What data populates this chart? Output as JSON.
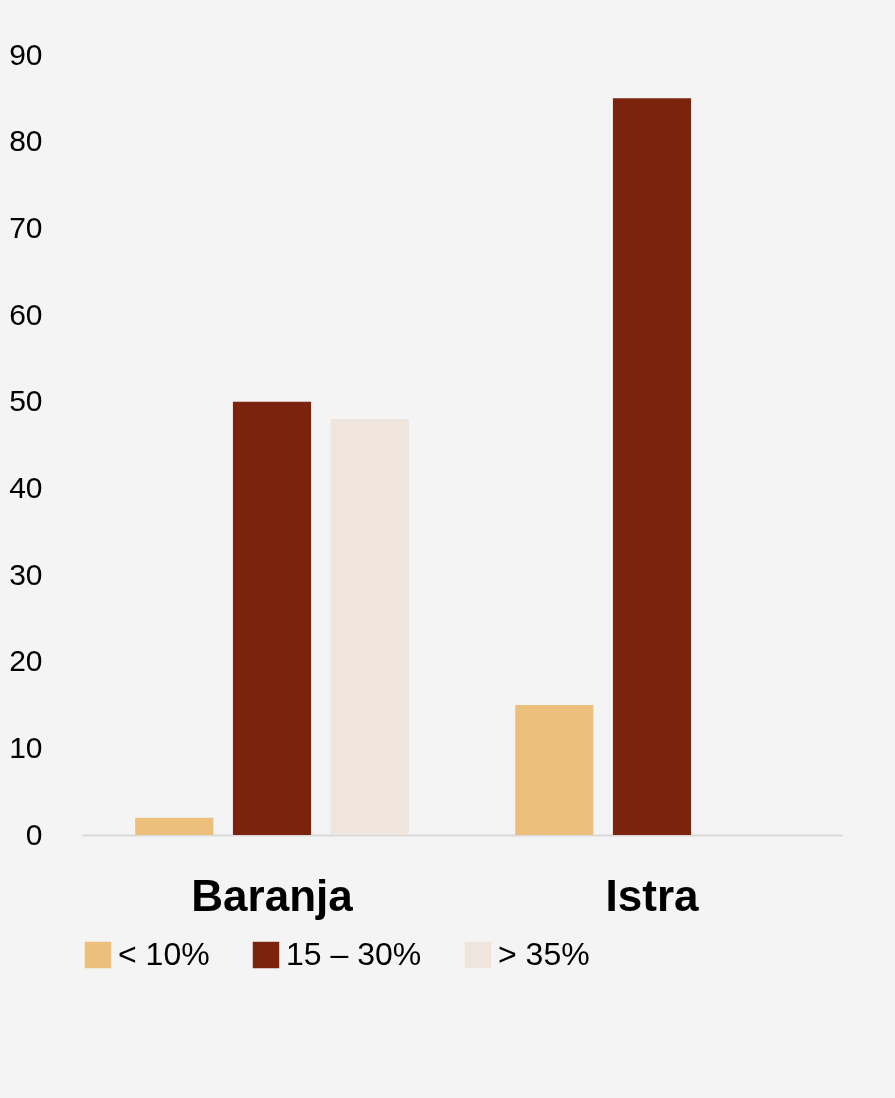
{
  "chart_data": {
    "type": "bar",
    "categories": [
      "Baranja",
      "Istra"
    ],
    "series": [
      {
        "name": "< 10%",
        "color": "#ecc07c",
        "values": [
          2,
          15
        ]
      },
      {
        "name": "15 – 30%",
        "color": "#7b230d",
        "values": [
          50,
          85
        ]
      },
      {
        "name": "> 35%",
        "color": "#efe5dc",
        "values": [
          48,
          null
        ]
      }
    ],
    "ylim": [
      0,
      90
    ],
    "yticks": [
      0,
      10,
      20,
      30,
      40,
      50,
      60,
      70,
      80,
      90
    ],
    "grid": false,
    "legend": "bottom"
  }
}
